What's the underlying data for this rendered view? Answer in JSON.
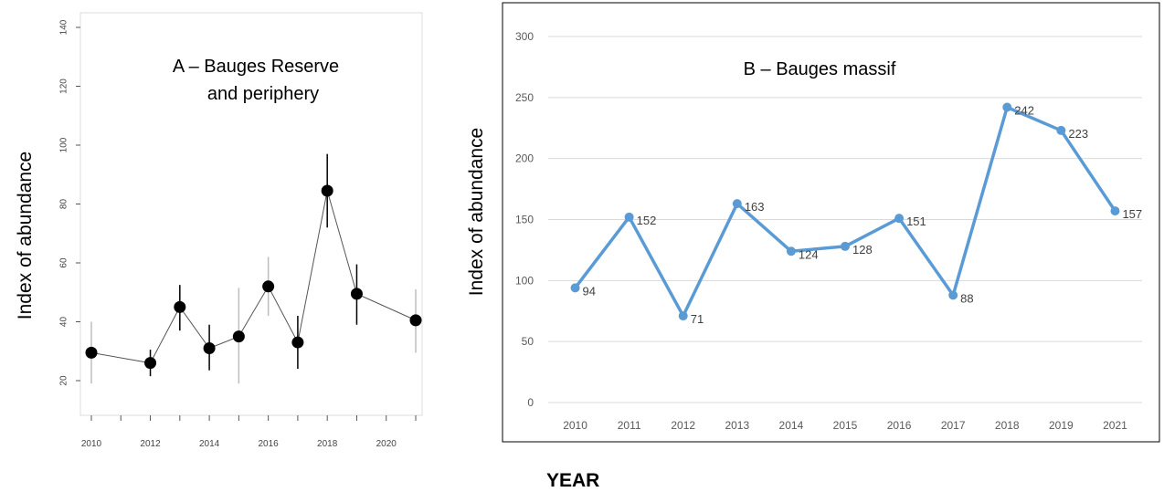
{
  "chart_data": [
    {
      "type": "scatter",
      "title": "A – Bauges Reserve and periphery",
      "title_lines": [
        "A – Bauges Reserve",
        "and periphery"
      ],
      "xlabel": "",
      "ylabel": "Index of abundance",
      "xlim": [
        2009.8,
        2021.4
      ],
      "ylim": [
        10,
        140
      ],
      "x_ticks": [
        2010,
        2011,
        2012,
        2013,
        2014,
        2015,
        2016,
        2017,
        2018,
        2019,
        2020,
        2021
      ],
      "x_tick_labels": [
        "2010",
        "",
        "2012",
        "",
        "2014",
        "",
        "2016",
        "",
        "2018",
        "",
        "2020",
        ""
      ],
      "y_ticks": [
        20,
        40,
        60,
        80,
        100,
        120,
        140
      ],
      "y_tick_labels": [
        "20",
        "40",
        "60",
        "80",
        "100",
        "120",
        "140"
      ],
      "grid": false,
      "series": [
        {
          "x": [
            2010,
            2012,
            2013,
            2014,
            2015,
            2016,
            2017,
            2018,
            2019,
            2021
          ],
          "y": [
            29.5,
            26,
            45,
            31,
            35,
            52,
            33,
            84.5,
            49.5,
            40.5
          ],
          "y_low": [
            19,
            21.5,
            37,
            23.5,
            19,
            42,
            24,
            72,
            39,
            29.5
          ],
          "y_high": [
            40,
            30.5,
            52.5,
            39,
            51.5,
            62,
            42,
            97,
            59.5,
            51
          ]
        }
      ],
      "colors": {
        "marker": "#000000",
        "line": "#555555",
        "errorbar": "#000000",
        "errorbar_faint": "#bdbdbd"
      }
    },
    {
      "type": "line",
      "title": "B – Bauges massif",
      "xlabel": "YEAR",
      "ylabel": "Index of abundance",
      "categories": [
        "2010",
        "2011",
        "2012",
        "2013",
        "2014",
        "2015",
        "2016",
        "2017",
        "2018",
        "2019",
        "2021"
      ],
      "ylim": [
        0,
        300
      ],
      "y_ticks": [
        0,
        50,
        100,
        150,
        200,
        250,
        300
      ],
      "y_tick_labels": [
        "0",
        "50",
        "100",
        "150",
        "200",
        "250",
        "300"
      ],
      "grid": true,
      "series": [
        {
          "values": [
            94,
            152,
            71,
            163,
            124,
            128,
            151,
            88,
            242,
            223,
            157
          ],
          "labels": [
            "94",
            "152",
            "71",
            "163",
            "124",
            "128",
            "151",
            "88",
            "242",
            "223",
            "157"
          ]
        }
      ],
      "colors": {
        "line": "#5b9bd5",
        "grid": "#d9d9d9",
        "axis_text": "#595959",
        "border": "#000000"
      }
    }
  ]
}
